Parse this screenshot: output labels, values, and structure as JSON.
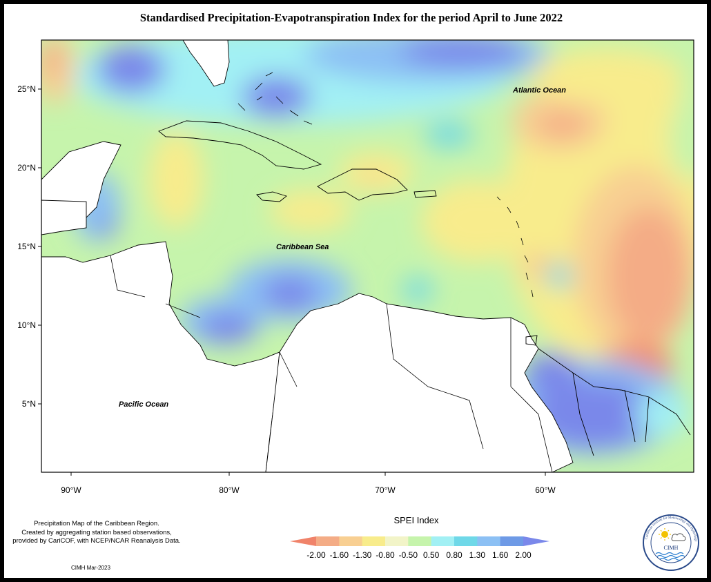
{
  "title": "Standardised Precipitation-Evapotranspiration Index for the period April to June 2022",
  "map": {
    "lat_ticks": [
      "25°N",
      "20°N",
      "15°N",
      "10°N",
      "5°N"
    ],
    "lon_ticks": [
      "90°W",
      "80°W",
      "70°W",
      "60°W"
    ],
    "labels": {
      "atlantic": "Atlantic Ocean",
      "caribbean": "Caribbean Sea",
      "pacific": "Pacific Ocean"
    },
    "ocean_color": "#ffffff",
    "land_outline_color": "#000000"
  },
  "legend": {
    "title": "SPEI Index",
    "tick_labels": [
      "-2.00",
      "-1.60",
      "-1.30",
      "-0.80",
      "-0.50",
      "0.50",
      "0.80",
      "1.30",
      "1.60",
      "2.00"
    ],
    "colors": [
      "#f0836a",
      "#f4ac86",
      "#f8cf92",
      "#f8ec8c",
      "#f2f4c8",
      "#c6f4ac",
      "#a2f0f4",
      "#6fd8e8",
      "#8cc0f4",
      "#6e9ae6",
      "#7a88ea"
    ]
  },
  "note": {
    "line1": "Precipitation Map of the Caribbean Region.",
    "line2": "Created by aggregating station based observations,",
    "line3": "provided by CariCOF, with NCEP/NCAR Reanalysis Data."
  },
  "credit": "CIMH Mar-2023",
  "logo": {
    "name": "CIMH",
    "ring_text": "Caribbean Institute for Meteorology and Hydrology"
  }
}
